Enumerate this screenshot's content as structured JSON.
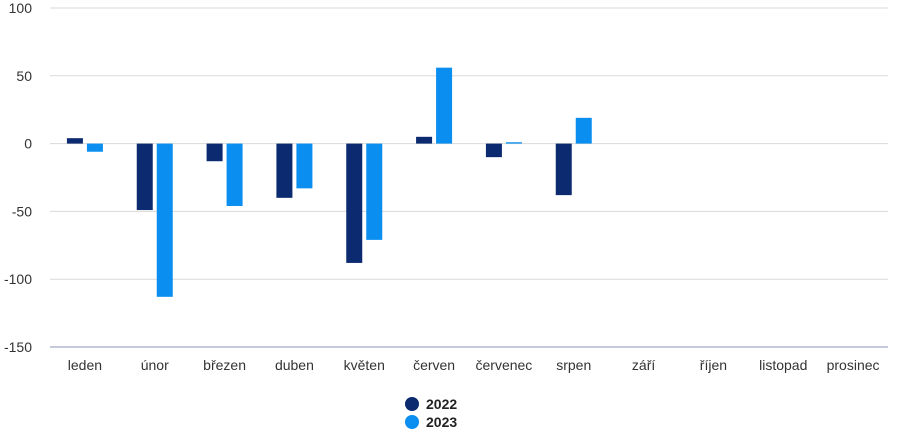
{
  "chart_data": {
    "type": "bar",
    "categories": [
      "leden",
      "únor",
      "březen",
      "duben",
      "květen",
      "červen",
      "červenec",
      "srpen",
      "září",
      "říjen",
      "listopad",
      "prosinec"
    ],
    "series": [
      {
        "name": "2022",
        "color": "#0b2a6f",
        "values": [
          4,
          -49,
          -13,
          -40,
          -88,
          5,
          -10,
          -38,
          null,
          null,
          null,
          null
        ]
      },
      {
        "name": "2023",
        "color": "#0a8ef0",
        "values": [
          -6,
          -113,
          -46,
          -33,
          -71,
          56,
          1,
          19,
          null,
          null,
          null,
          null
        ]
      }
    ],
    "yticks": [
      100,
      50,
      0,
      -50,
      -100,
      -150
    ],
    "ylim": [
      -150,
      100
    ],
    "grid": true,
    "legend_position": "bottom-center",
    "title": "",
    "xlabel": "",
    "ylabel": ""
  }
}
